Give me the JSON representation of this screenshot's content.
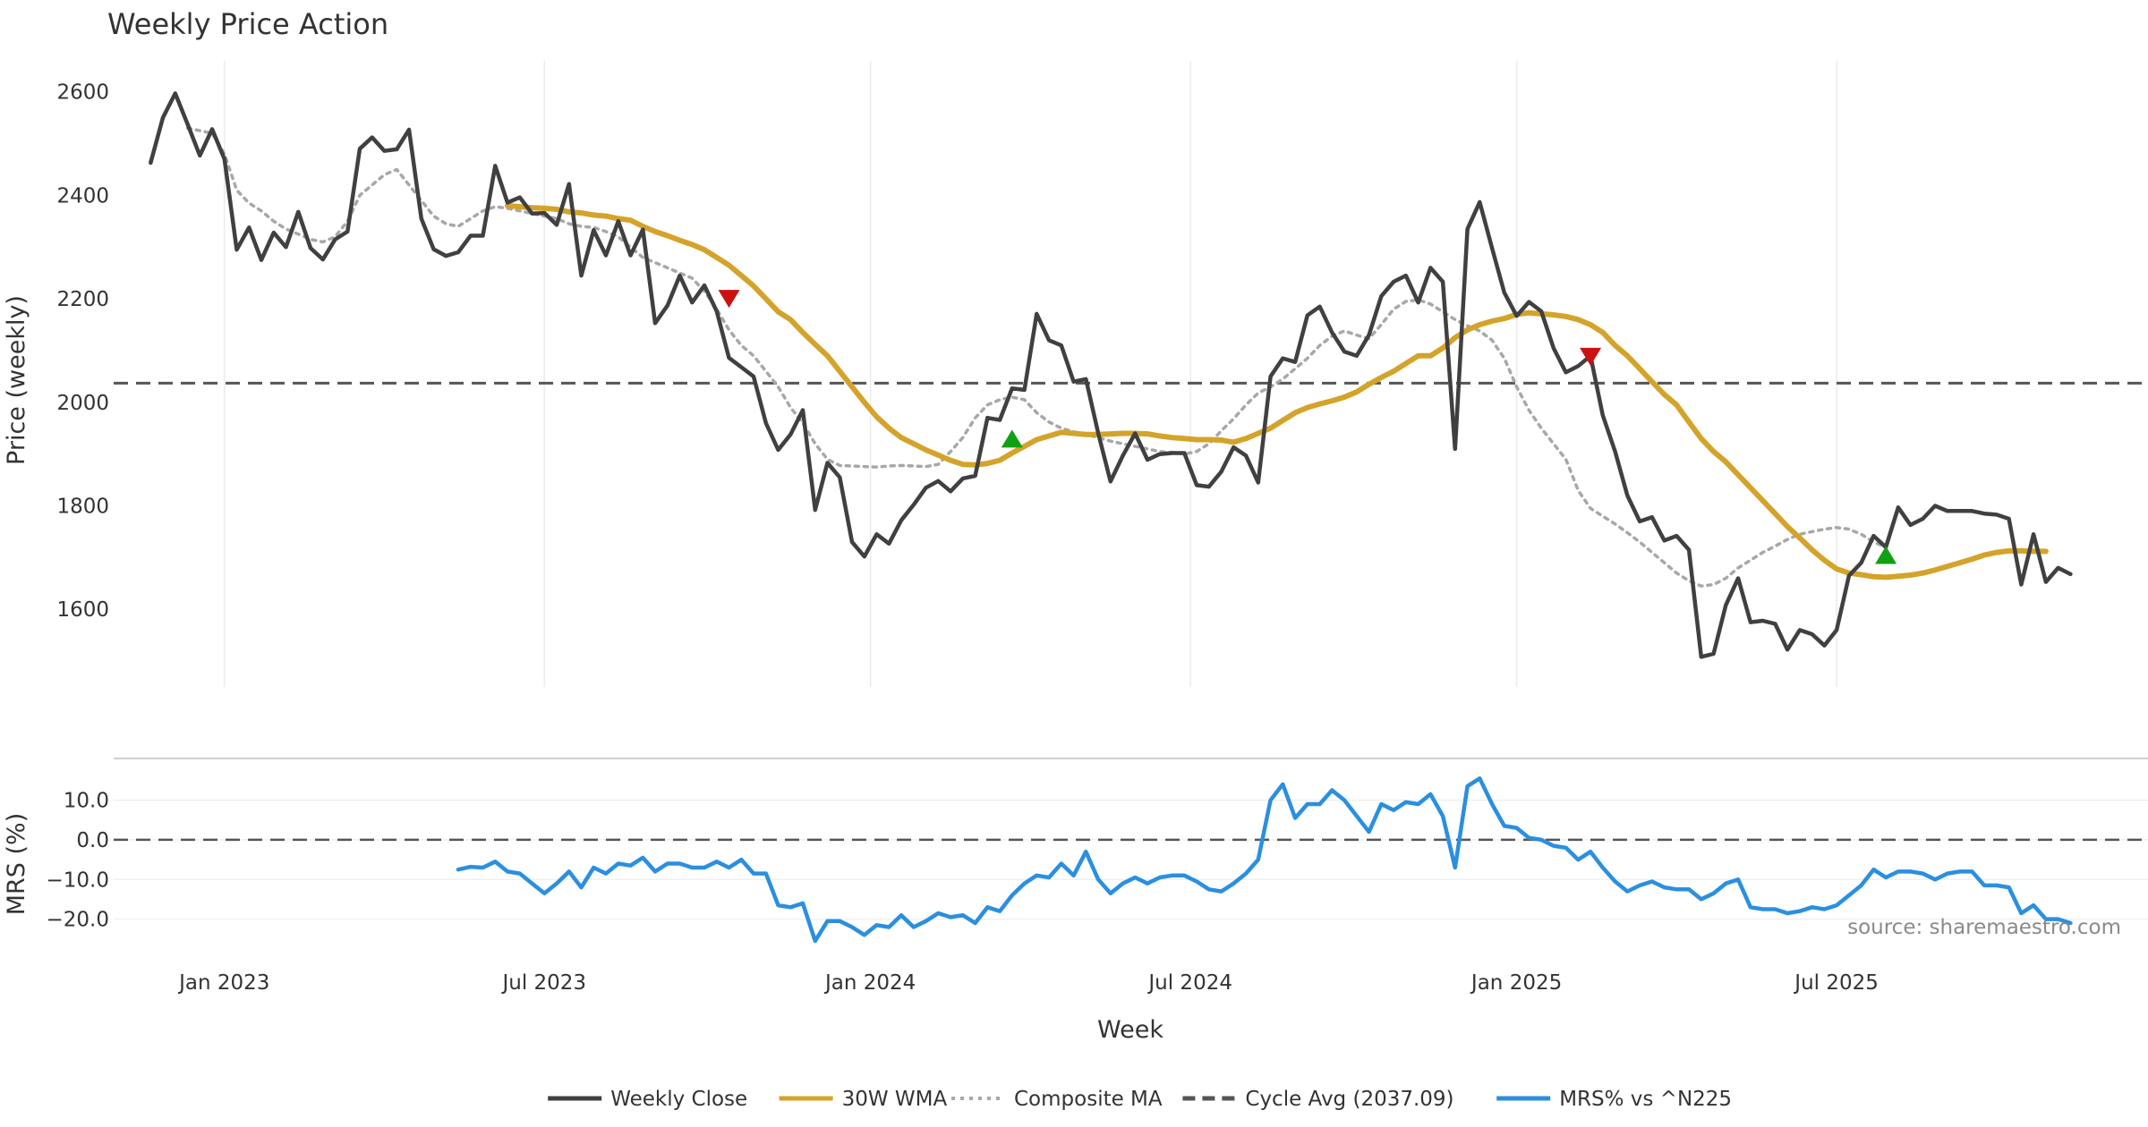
{
  "chart_data": [
    {
      "panel": "price",
      "type": "line",
      "title": "Weekly Price Action",
      "ylabel": "Price (weekly)",
      "xlabel": "Week",
      "ylim": [
        1450,
        2660
      ],
      "y_ticks": [
        1600,
        1800,
        2000,
        2200,
        2400,
        2600
      ],
      "x_ticks": [
        {
          "week": 6,
          "label": "Jan 2023"
        },
        {
          "week": 32,
          "label": "Jul 2023"
        },
        {
          "week": 58.5,
          "label": "Jan 2024"
        },
        {
          "week": 84.5,
          "label": "Jul 2024"
        },
        {
          "week": 111,
          "label": "Jan 2025"
        },
        {
          "week": 137,
          "label": "Jul 2025"
        }
      ],
      "x_range": [
        -3,
        162.3
      ],
      "grid": "vertical",
      "cycle_avg": 2037.09,
      "series": [
        {
          "name": "Weekly Close",
          "color": "#404040",
          "style": "solid",
          "start_week": 0,
          "values": [
            2463,
            2550,
            2597,
            2538,
            2477,
            2528,
            2470,
            2295,
            2338,
            2275,
            2328,
            2300,
            2368,
            2298,
            2276,
            2315,
            2330,
            2490,
            2512,
            2486,
            2489,
            2527,
            2355,
            2296,
            2283,
            2290,
            2322,
            2322,
            2457,
            2386,
            2396,
            2365,
            2366,
            2343,
            2422,
            2245,
            2333,
            2284,
            2350,
            2284,
            2334,
            2153,
            2187,
            2245,
            2193,
            2226,
            2176,
            2086,
            2068,
            2050,
            1960,
            1908,
            1938,
            1985,
            1792,
            1883,
            1855,
            1730,
            1702,
            1745,
            1727,
            1772,
            1802,
            1835,
            1848,
            1828,
            1853,
            1858,
            1970,
            1966,
            2027,
            2024,
            2171,
            2120,
            2110,
            2040,
            2045,
            1940,
            1847,
            1897,
            1940,
            1889,
            1900,
            1902,
            1902,
            1840,
            1837,
            1866,
            1913,
            1897,
            1845,
            2050,
            2085,
            2078,
            2168,
            2185,
            2135,
            2098,
            2090,
            2130,
            2205,
            2233,
            2245,
            2193,
            2260,
            2233,
            1910,
            2335,
            2387,
            2298,
            2212,
            2167,
            2194,
            2176,
            2105,
            2058,
            2070,
            2090,
            1975,
            1905,
            1820,
            1770,
            1778,
            1733,
            1742,
            1715,
            1508,
            1514,
            1608,
            1660,
            1575,
            1578,
            1572,
            1522,
            1560,
            1552,
            1530,
            1560,
            1665,
            1690,
            1742,
            1720,
            1797,
            1763,
            1775,
            1800,
            1790,
            1790,
            1790,
            1785,
            1783,
            1775,
            1648,
            1745,
            1653,
            1680,
            1668
          ]
        },
        {
          "name": "30W WMA",
          "color": "#d4a32a",
          "style": "solid",
          "start_week": 29,
          "values": [
            2380,
            2378,
            2376,
            2375,
            2373,
            2368,
            2366,
            2362,
            2360,
            2355,
            2352,
            2340,
            2330,
            2322,
            2313,
            2305,
            2295,
            2280,
            2265,
            2245,
            2225,
            2200,
            2175,
            2160,
            2135,
            2112,
            2090,
            2060,
            2030,
            2000,
            1972,
            1950,
            1932,
            1920,
            1908,
            1898,
            1888,
            1880,
            1879,
            1882,
            1888,
            1902,
            1915,
            1928,
            1935,
            1942,
            1940,
            1938,
            1938,
            1939,
            1940,
            1940,
            1939,
            1935,
            1932,
            1930,
            1928,
            1928,
            1927,
            1923,
            1930,
            1940,
            1950,
            1965,
            1980,
            1990,
            1997,
            2003,
            2010,
            2020,
            2035,
            2048,
            2060,
            2075,
            2090,
            2090,
            2105,
            2125,
            2140,
            2150,
            2157,
            2162,
            2170,
            2173,
            2171,
            2169,
            2166,
            2160,
            2150,
            2135,
            2110,
            2090,
            2065,
            2040,
            2015,
            1995,
            1962,
            1930,
            1905,
            1885,
            1860,
            1835,
            1810,
            1785,
            1760,
            1738,
            1715,
            1695,
            1678,
            1670,
            1667,
            1663,
            1662,
            1664,
            1666,
            1670,
            1676,
            1683,
            1690,
            1697,
            1705,
            1710,
            1713,
            1713,
            1712,
            1712
          ]
        },
        {
          "name": "Composite MA",
          "color": "#a8a8a8",
          "style": "dotted",
          "start_week": 3,
          "values": [
            2530,
            2525,
            2520,
            2480,
            2410,
            2385,
            2370,
            2350,
            2335,
            2325,
            2315,
            2310,
            2320,
            2350,
            2400,
            2420,
            2440,
            2450,
            2420,
            2390,
            2360,
            2345,
            2340,
            2355,
            2370,
            2378,
            2375,
            2370,
            2365,
            2360,
            2355,
            2345,
            2340,
            2338,
            2330,
            2320,
            2300,
            2280,
            2270,
            2260,
            2250,
            2240,
            2215,
            2180,
            2140,
            2110,
            2090,
            2060,
            2030,
            1990,
            1960,
            1920,
            1890,
            1878,
            1877,
            1876,
            1875,
            1877,
            1878,
            1877,
            1876,
            1880,
            1905,
            1932,
            1970,
            1995,
            2005,
            2010,
            2005,
            1980,
            1962,
            1950,
            1943,
            1938,
            1932,
            1925,
            1920,
            1915,
            1910,
            1905,
            1903,
            1900,
            1905,
            1920,
            1945,
            1968,
            1995,
            2018,
            2030,
            2045,
            2065,
            2085,
            2110,
            2128,
            2138,
            2130,
            2123,
            2150,
            2180,
            2195,
            2198,
            2190,
            2175,
            2160,
            2148,
            2138,
            2120,
            2085,
            2030,
            1985,
            1950,
            1920,
            1890,
            1830,
            1795,
            1780,
            1765,
            1748,
            1730,
            1710,
            1690,
            1670,
            1655,
            1645,
            1648,
            1660,
            1680,
            1695,
            1710,
            1722,
            1735,
            1745,
            1750,
            1755,
            1758,
            1755,
            1745,
            1730,
            1720
          ]
        }
      ],
      "signals": [
        {
          "week": 47,
          "price": 2200,
          "direction": "down",
          "color": "#cc1111"
        },
        {
          "week": 70,
          "price": 1930,
          "direction": "up",
          "color": "#11a011"
        },
        {
          "week": 117,
          "price": 2088,
          "direction": "down",
          "color": "#cc1111"
        },
        {
          "week": 141,
          "price": 1705,
          "direction": "up",
          "color": "#11a011"
        }
      ]
    },
    {
      "panel": "mrs",
      "type": "line",
      "ylabel": "MRS (%)",
      "ylim": [
        -25.5,
        20.5
      ],
      "y_ticks": [
        10,
        0,
        -10,
        -20
      ],
      "y_tick_labels": [
        "10.0",
        "0.0",
        "−10.0",
        "−20.0"
      ],
      "zero_line": 0,
      "series": [
        {
          "name": "MRS% vs ^N225",
          "color": "#2b8fe0",
          "style": "solid",
          "start_week": 25,
          "values": [
            -7.5,
            -6.8,
            -7.0,
            -5.5,
            -8.0,
            -8.5,
            -11.0,
            -13.5,
            -11.0,
            -8.0,
            -12.0,
            -7.0,
            -8.5,
            -6.0,
            -6.5,
            -4.5,
            -8.0,
            -6.0,
            -6.0,
            -7.0,
            -7.0,
            -5.5,
            -7.0,
            -5.0,
            -8.5,
            -8.5,
            -16.5,
            -17.0,
            -16.0,
            -25.5,
            -20.5,
            -20.5,
            -22.0,
            -24.0,
            -21.5,
            -22.0,
            -19.0,
            -22.0,
            -20.5,
            -18.5,
            -19.5,
            -19.0,
            -21.0,
            -17.0,
            -18.0,
            -14.0,
            -11.0,
            -9.0,
            -9.5,
            -6.0,
            -9.0,
            -3.0,
            -10.0,
            -13.5,
            -11.0,
            -9.5,
            -11.0,
            -9.5,
            -9.0,
            -9.0,
            -10.5,
            -12.5,
            -13.0,
            -11.0,
            -8.5,
            -5.0,
            10.0,
            14.0,
            5.5,
            9.0,
            9.0,
            12.5,
            10.0,
            6.0,
            2.0,
            9.0,
            7.5,
            9.5,
            9.0,
            11.5,
            6.0,
            -7.0,
            13.5,
            15.5,
            9.0,
            3.5,
            3.0,
            0.5,
            0.0,
            -1.5,
            -2.0,
            -5.0,
            -3.0,
            -7.0,
            -10.5,
            -13.0,
            -11.5,
            -10.5,
            -12.0,
            -12.5,
            -12.5,
            -15.0,
            -13.5,
            -11.0,
            -10.0,
            -17.0,
            -17.5,
            -17.5,
            -18.5,
            -18.0,
            -17.0,
            -17.5,
            -16.5,
            -14.0,
            -11.5,
            -7.5,
            -9.5,
            -8.0,
            -8.0,
            -8.5,
            -10.0,
            -8.5,
            -8.0,
            -8.0,
            -11.5,
            -11.5,
            -12.0,
            -18.5,
            -16.5,
            -20.0,
            -20.0,
            -21.0
          ]
        }
      ]
    }
  ],
  "cycle_avg_line": {
    "name": "Cycle Avg (2037.09)",
    "color": "#555555",
    "style": "dashed"
  },
  "legend": {
    "position": "bottom-center",
    "items": [
      {
        "label": "Weekly Close",
        "color": "#404040",
        "style": "solid"
      },
      {
        "label": "30W WMA",
        "color": "#d4a32a",
        "style": "solid"
      },
      {
        "label": "Composite MA",
        "color": "#a8a8a8",
        "style": "dotted"
      },
      {
        "label": "Cycle Avg (2037.09)",
        "color": "#555555",
        "style": "dashed"
      },
      {
        "label": "MRS% vs ^N225",
        "color": "#2b8fe0",
        "style": "solid"
      }
    ]
  },
  "source": "source: sharemaestro.com"
}
